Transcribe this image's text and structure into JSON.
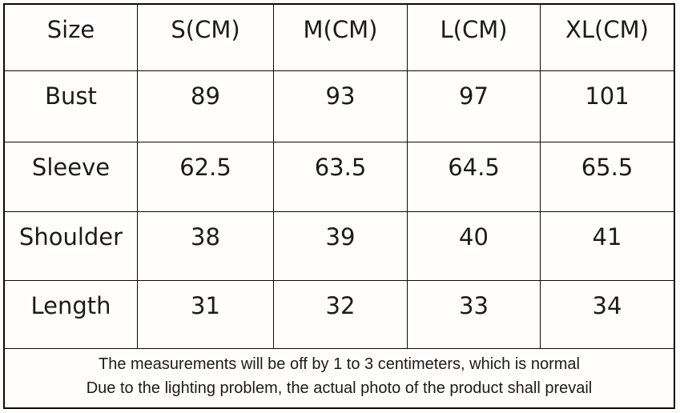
{
  "chart_data": {
    "type": "table",
    "columns": [
      "Size",
      "S(CM)",
      "M(CM)",
      "L(CM)",
      "XL(CM)"
    ],
    "rows": [
      [
        "Bust",
        "89",
        "93",
        "97",
        "101"
      ],
      [
        "Sleeve",
        "62.5",
        "63.5",
        "64.5",
        "65.5"
      ],
      [
        "Shoulder",
        "38",
        "39",
        "40",
        "41"
      ],
      [
        "Length",
        "31",
        "32",
        "33",
        "34"
      ]
    ],
    "notes": [
      "The measurements will be off by 1 to 3 centimeters, which is normal",
      "Due to the lighting problem, the actual photo of the product shall prevail"
    ],
    "layout_hints": {
      "grid": "on",
      "header_position": "top-row",
      "notes_position": "merged-footer-row"
    }
  },
  "colors": {
    "border": "#0a0a0a",
    "text": "#1b1b1b",
    "background": "#fffefc"
  }
}
